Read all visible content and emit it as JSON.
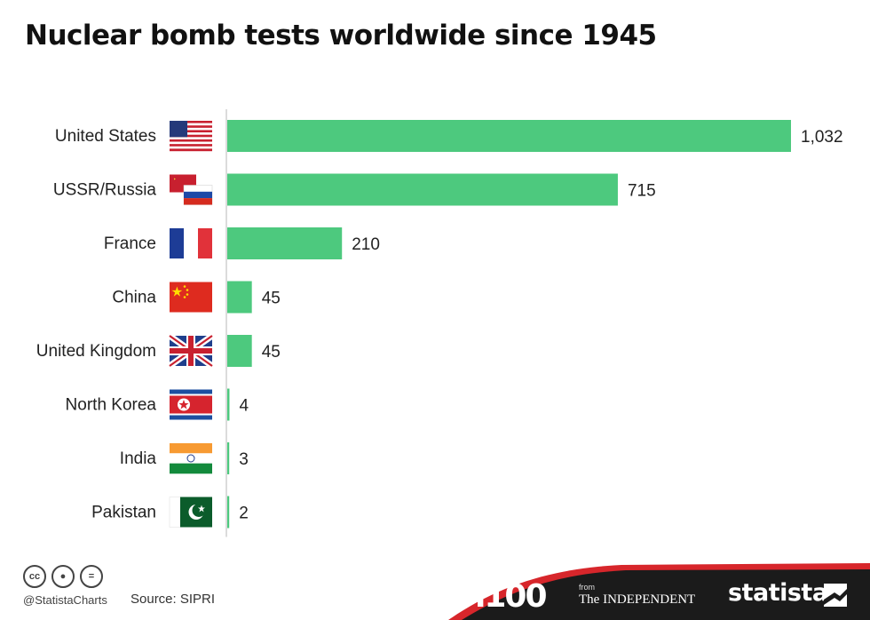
{
  "title": "Nuclear bomb tests worldwide since 1945",
  "chart_data": {
    "type": "bar",
    "orientation": "horizontal",
    "title": "Nuclear bomb tests worldwide since 1945",
    "categories": [
      "United States",
      "USSR/Russia",
      "France",
      "China",
      "United Kingdom",
      "North Korea",
      "India",
      "Pakistan"
    ],
    "values": [
      1032,
      715,
      210,
      45,
      45,
      4,
      3,
      2
    ],
    "value_labels": [
      "1,032",
      "715",
      "210",
      "45",
      "45",
      "4",
      "3",
      "2"
    ],
    "flags": [
      "us-flag-icon",
      "ussr-russia-flag-icon",
      "france-flag-icon",
      "china-flag-icon",
      "uk-flag-icon",
      "north-korea-flag-icon",
      "india-flag-icon",
      "pakistan-flag-icon"
    ],
    "bar_color": "#4dc97e",
    "xlim": [
      0,
      1032
    ],
    "grid": false,
    "legend": "none"
  },
  "footer": {
    "license_icons": [
      "cc-icon",
      "attribution-icon",
      "no-derivatives-icon"
    ],
    "handle": "@StatistaCharts",
    "source": "Source: SIPRI",
    "brand_i100": "i100",
    "brand_from": "from",
    "brand_independent": "The INDEPENDENT",
    "brand_statista": "statista",
    "band_color": "#1b1b1b",
    "accent_color": "#d7262b"
  }
}
